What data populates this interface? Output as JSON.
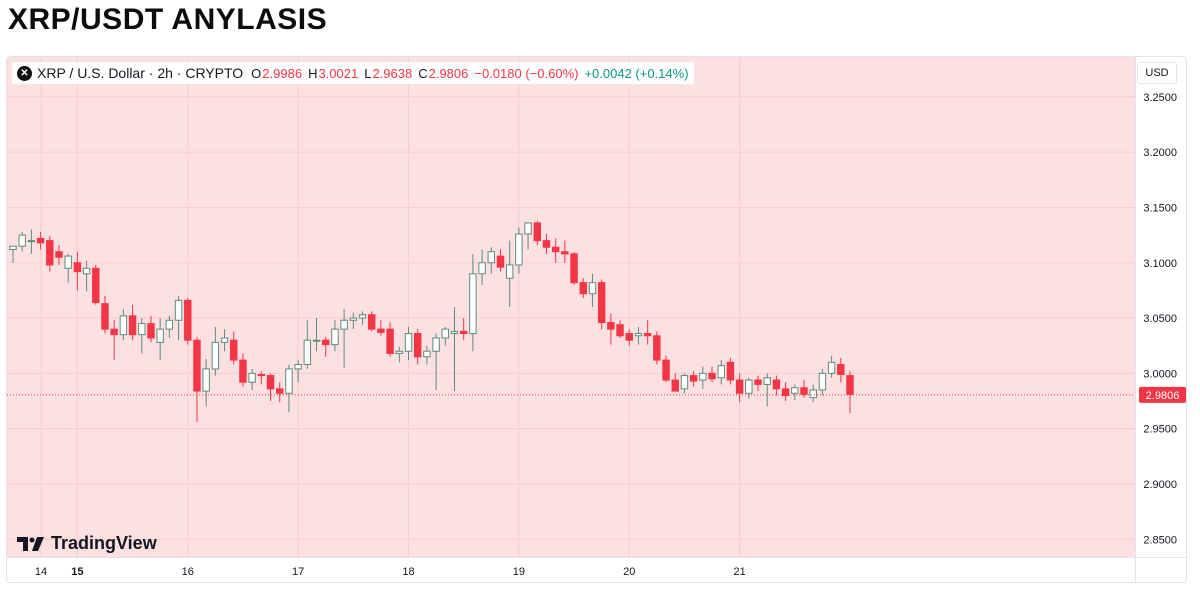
{
  "page_title": "XRP/USDT ANYLASIS",
  "legend": {
    "logo_icon": "xrp-logo-icon",
    "symbol": "XRP / U.S. Dollar · 2h · CRYPTO",
    "open_label": "O",
    "open": "2.9986",
    "high_label": "H",
    "high": "3.0021",
    "low_label": "L",
    "low": "2.9638",
    "close_label": "C",
    "close": "2.9806",
    "change": "−0.0180 (−0.60%)",
    "extra": "+0.0042 (+0.14%)"
  },
  "currency": "USD",
  "branding": "TradingView",
  "colors": {
    "background": "#fde0e2",
    "up": "#ffffff",
    "up_border": "#5b8c7a",
    "down": "#f23645",
    "grid": "#f6cdd0",
    "price_line": "#f23645",
    "axis_text": "#131722"
  },
  "chart_data": {
    "type": "candlestick",
    "interval": "2h",
    "y_axis": {
      "ticks": [
        "3.2500",
        "3.2000",
        "3.1500",
        "3.1000",
        "3.0500",
        "3.0000",
        "2.9500",
        "2.9000",
        "2.8500"
      ],
      "ylim": [
        2.834,
        3.286
      ],
      "side": "right"
    },
    "x_axis": {
      "ticks": [
        "14",
        "15",
        "16",
        "17",
        "18",
        "19",
        "20",
        "21"
      ],
      "bold_tick": "15"
    },
    "last_price": {
      "value": 2.9806,
      "label": "2.9806"
    },
    "candles": [
      [
        3.112,
        3.115,
        3.1,
        3.115
      ],
      [
        3.115,
        3.128,
        3.11,
        3.125
      ],
      [
        3.12,
        3.13,
        3.108,
        3.12
      ],
      [
        3.122,
        3.128,
        3.112,
        3.118
      ],
      [
        3.12,
        3.124,
        3.092,
        3.098
      ],
      [
        3.11,
        3.116,
        3.098,
        3.105
      ],
      [
        3.095,
        3.108,
        3.082,
        3.106
      ],
      [
        3.1,
        3.11,
        3.075,
        3.092
      ],
      [
        3.09,
        3.102,
        3.074,
        3.095
      ],
      [
        3.095,
        3.098,
        3.062,
        3.064
      ],
      [
        3.063,
        3.07,
        3.036,
        3.04
      ],
      [
        3.04,
        3.048,
        3.012,
        3.035
      ],
      [
        3.035,
        3.058,
        3.03,
        3.052
      ],
      [
        3.052,
        3.062,
        3.03,
        3.035
      ],
      [
        3.035,
        3.05,
        3.018,
        3.045
      ],
      [
        3.045,
        3.052,
        3.028,
        3.032
      ],
      [
        3.028,
        3.05,
        3.012,
        3.04
      ],
      [
        3.04,
        3.052,
        3.032,
        3.048
      ],
      [
        3.048,
        3.07,
        3.03,
        3.066
      ],
      [
        3.066,
        3.068,
        3.026,
        3.03
      ],
      [
        3.03,
        3.033,
        2.956,
        2.984
      ],
      [
        2.984,
        3.013,
        2.97,
        3.004
      ],
      [
        3.004,
        3.042,
        2.998,
        3.028
      ],
      [
        3.028,
        3.04,
        3.02,
        3.032
      ],
      [
        3.03,
        3.038,
        3.008,
        3.012
      ],
      [
        3.012,
        3.018,
        2.988,
        2.992
      ],
      [
        2.992,
        3.004,
        2.985,
        3.0
      ],
      [
        2.999,
        3.002,
        2.99,
        2.998
      ],
      [
        2.998,
        3.0,
        2.975,
        2.986
      ],
      [
        2.986,
        2.992,
        2.974,
        2.982
      ],
      [
        2.982,
        3.008,
        2.965,
        3.004
      ],
      [
        3.004,
        3.012,
        2.992,
        3.008
      ],
      [
        3.008,
        3.048,
        3.004,
        3.03
      ],
      [
        3.03,
        3.05,
        3.02,
        3.03
      ],
      [
        3.03,
        3.033,
        3.015,
        3.026
      ],
      [
        3.026,
        3.048,
        3.02,
        3.04
      ],
      [
        3.04,
        3.058,
        3.005,
        3.048
      ],
      [
        3.048,
        3.055,
        3.04,
        3.05
      ],
      [
        3.05,
        3.056,
        3.044,
        3.053
      ],
      [
        3.053,
        3.056,
        3.038,
        3.04
      ],
      [
        3.04,
        3.048,
        3.034,
        3.037
      ],
      [
        3.04,
        3.046,
        3.015,
        3.018
      ],
      [
        3.018,
        3.024,
        3.01,
        3.02
      ],
      [
        3.02,
        3.042,
        3.012,
        3.036
      ],
      [
        3.036,
        3.04,
        3.008,
        3.015
      ],
      [
        3.015,
        3.025,
        3.008,
        3.02
      ],
      [
        3.02,
        3.036,
        2.985,
        3.032
      ],
      [
        3.032,
        3.042,
        3.025,
        3.04
      ],
      [
        3.036,
        3.06,
        2.984,
        3.038
      ],
      [
        3.038,
        3.05,
        3.03,
        3.036
      ],
      [
        3.036,
        3.108,
        3.02,
        3.09
      ],
      [
        3.09,
        3.112,
        3.08,
        3.1
      ],
      [
        3.1,
        3.114,
        3.09,
        3.11
      ],
      [
        3.106,
        3.112,
        3.092,
        3.096
      ],
      [
        3.086,
        3.12,
        3.06,
        3.098
      ],
      [
        3.098,
        3.132,
        3.09,
        3.126
      ],
      [
        3.126,
        3.136,
        3.112,
        3.136
      ],
      [
        3.136,
        3.138,
        3.116,
        3.12
      ],
      [
        3.12,
        3.126,
        3.108,
        3.114
      ],
      [
        3.114,
        3.122,
        3.1,
        3.11
      ],
      [
        3.11,
        3.12,
        3.1,
        3.108
      ],
      [
        3.108,
        3.11,
        3.08,
        3.082
      ],
      [
        3.082,
        3.086,
        3.068,
        3.072
      ],
      [
        3.072,
        3.09,
        3.06,
        3.082
      ],
      [
        3.082,
        3.085,
        3.04,
        3.046
      ],
      [
        3.046,
        3.054,
        3.026,
        3.04
      ],
      [
        3.044,
        3.048,
        3.032,
        3.034
      ],
      [
        3.036,
        3.04,
        3.025,
        3.03
      ],
      [
        3.034,
        3.042,
        3.026,
        3.036
      ],
      [
        3.036,
        3.048,
        3.026,
        3.034
      ],
      [
        3.034,
        3.038,
        3.008,
        3.012
      ],
      [
        3.012,
        3.016,
        2.992,
        2.994
      ],
      [
        2.994,
        3.0,
        2.985,
        2.984
      ],
      [
        2.986,
        3.0,
        2.982,
        2.998
      ],
      [
        2.998,
        3.002,
        2.988,
        2.993
      ],
      [
        2.994,
        3.006,
        2.986,
        3.0
      ],
      [
        3.0,
        3.006,
        2.992,
        2.995
      ],
      [
        2.996,
        3.012,
        2.99,
        3.007
      ],
      [
        3.01,
        3.014,
        2.99,
        2.994
      ],
      [
        2.994,
        3.0,
        2.974,
        2.982
      ],
      [
        2.982,
        2.996,
        2.977,
        2.994
      ],
      [
        2.994,
        2.998,
        2.984,
        2.99
      ],
      [
        2.99,
        3.0,
        2.97,
        2.996
      ],
      [
        2.994,
        2.998,
        2.98,
        2.986
      ],
      [
        2.986,
        2.992,
        2.975,
        2.98
      ],
      [
        2.982,
        2.99,
        2.976,
        2.987
      ],
      [
        2.987,
        2.994,
        2.978,
        2.981
      ],
      [
        2.978,
        2.99,
        2.974,
        2.985
      ],
      [
        2.985,
        3.004,
        2.98,
        3.0
      ],
      [
        3.0,
        3.016,
        2.996,
        3.01
      ],
      [
        3.008,
        3.014,
        2.992,
        2.999
      ],
      [
        2.998,
        3.002,
        2.964,
        2.981
      ]
    ]
  }
}
